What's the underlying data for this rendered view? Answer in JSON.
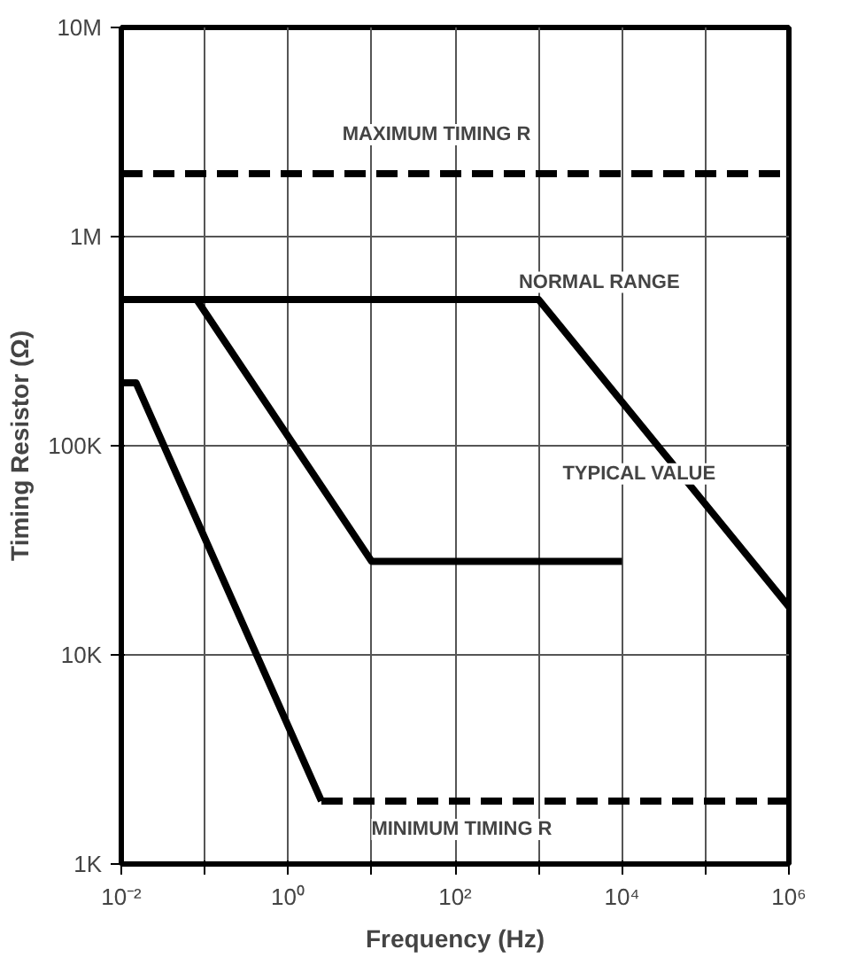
{
  "chart_data": {
    "type": "line",
    "xlabel": "Frequency (Hz)",
    "ylabel": "Timing Resistor (Ω)",
    "log": "xy",
    "grid": true,
    "xlim": [
      0.01,
      1000000
    ],
    "ylim": [
      1000,
      10000000
    ],
    "xticks": [
      {
        "value": 0.01,
        "label": "10⁻²"
      },
      {
        "value": 0.1,
        "label": null
      },
      {
        "value": 1,
        "label": "10⁰"
      },
      {
        "value": 10,
        "label": null
      },
      {
        "value": 100,
        "label": "10²"
      },
      {
        "value": 1000,
        "label": null
      },
      {
        "value": 10000,
        "label": "10⁴"
      },
      {
        "value": 100000,
        "label": null
      },
      {
        "value": 1000000,
        "label": "10⁶"
      }
    ],
    "yticks": [
      {
        "value": 1000,
        "label": "1K"
      },
      {
        "value": 10000,
        "label": "10K"
      },
      {
        "value": 100000,
        "label": "100K"
      },
      {
        "value": 1000000,
        "label": "1M"
      },
      {
        "value": 10000000,
        "label": "10M"
      }
    ],
    "series": [
      {
        "color": "#000000",
        "line_style": "dashed",
        "x": [
          0.01,
          1000000
        ],
        "values": [
          2000000,
          2000000
        ]
      },
      {
        "color": "#000000",
        "line_style": "solid",
        "x": [
          0.01,
          1000,
          1000000
        ],
        "values": [
          500000,
          500000,
          17000
        ]
      },
      {
        "color": "#000000",
        "line_style": "solid",
        "x": [
          0.01,
          0.015,
          2.5
        ],
        "values": [
          200000,
          200000,
          2000
        ]
      },
      {
        "color": "#000000",
        "line_style": "dashed",
        "x": [
          2.5,
          1000000
        ],
        "values": [
          2000,
          2000
        ]
      },
      {
        "color": "#000000",
        "line_style": "solid",
        "x": [
          0.08,
          10,
          10000
        ],
        "values": [
          500000,
          28000,
          28000
        ]
      }
    ],
    "annotations": [
      {
        "text": "MAXIMUM TIMING R",
        "x": 60,
        "y": 2000000
      },
      {
        "text": "MINIMUM TIMING R",
        "x": 120,
        "y": 2000
      },
      "NORMAL RANGE",
      "TYPICAL VALUE"
    ]
  }
}
